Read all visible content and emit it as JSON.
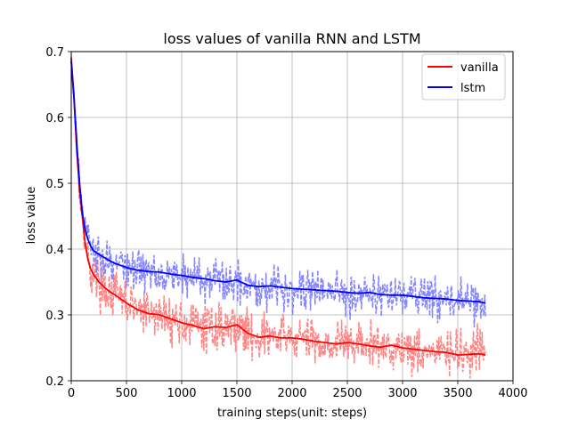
{
  "chart_data": {
    "type": "line",
    "title": "loss values of vanilla RNN and LSTM",
    "xlabel": "training steps(unit: steps)",
    "ylabel": "loss value",
    "xlim": [
      0,
      4000
    ],
    "ylim": [
      0.2,
      0.7
    ],
    "xticks": [
      "0",
      "500",
      "1000",
      "1500",
      "2000",
      "2500",
      "3000",
      "3500",
      "4000"
    ],
    "yticks": [
      "0.2",
      "0.3",
      "0.4",
      "0.5",
      "0.6",
      "0.7"
    ],
    "grid": true,
    "legend_position": "top-right",
    "series": [
      {
        "name": "vanilla",
        "color": "#ff0000",
        "raw_color": "#ff8080",
        "smoothed": {
          "x": [
            0,
            25,
            50,
            75,
            100,
            125,
            150,
            175,
            200,
            250,
            300,
            350,
            400,
            500,
            600,
            700,
            800,
            900,
            1000,
            1100,
            1200,
            1300,
            1400,
            1500,
            1600,
            1700,
            1800,
            1900,
            2000,
            2100,
            2200,
            2300,
            2400,
            2500,
            2600,
            2700,
            2800,
            2900,
            3000,
            3100,
            3200,
            3300,
            3400,
            3500,
            3600,
            3700,
            3750
          ],
          "y": [
            0.69,
            0.63,
            0.55,
            0.49,
            0.45,
            0.41,
            0.385,
            0.37,
            0.362,
            0.35,
            0.342,
            0.335,
            0.33,
            0.318,
            0.308,
            0.302,
            0.3,
            0.294,
            0.288,
            0.284,
            0.279,
            0.282,
            0.281,
            0.285,
            0.272,
            0.266,
            0.268,
            0.265,
            0.265,
            0.263,
            0.26,
            0.258,
            0.256,
            0.258,
            0.256,
            0.253,
            0.251,
            0.254,
            0.25,
            0.248,
            0.246,
            0.244,
            0.243,
            0.239,
            0.24,
            0.241,
            0.239
          ]
        },
        "raw_spread": 0.022
      },
      {
        "name": "lstm",
        "color": "#0000ff",
        "raw_color": "#8080ff",
        "smoothed": {
          "x": [
            0,
            25,
            50,
            75,
            100,
            125,
            150,
            175,
            200,
            250,
            300,
            350,
            400,
            500,
            600,
            700,
            800,
            900,
            1000,
            1100,
            1200,
            1300,
            1400,
            1500,
            1600,
            1700,
            1800,
            1900,
            2000,
            2100,
            2200,
            2300,
            2400,
            2500,
            2600,
            2700,
            2800,
            2900,
            3000,
            3100,
            3200,
            3300,
            3400,
            3500,
            3600,
            3700,
            3750
          ],
          "y": [
            0.685,
            0.63,
            0.56,
            0.5,
            0.455,
            0.43,
            0.415,
            0.405,
            0.398,
            0.392,
            0.387,
            0.382,
            0.378,
            0.372,
            0.368,
            0.366,
            0.365,
            0.362,
            0.36,
            0.357,
            0.355,
            0.352,
            0.35,
            0.353,
            0.345,
            0.343,
            0.344,
            0.342,
            0.34,
            0.339,
            0.338,
            0.337,
            0.336,
            0.334,
            0.333,
            0.334,
            0.331,
            0.33,
            0.33,
            0.328,
            0.326,
            0.325,
            0.324,
            0.322,
            0.321,
            0.32,
            0.318
          ]
        },
        "raw_spread": 0.02
      }
    ]
  }
}
